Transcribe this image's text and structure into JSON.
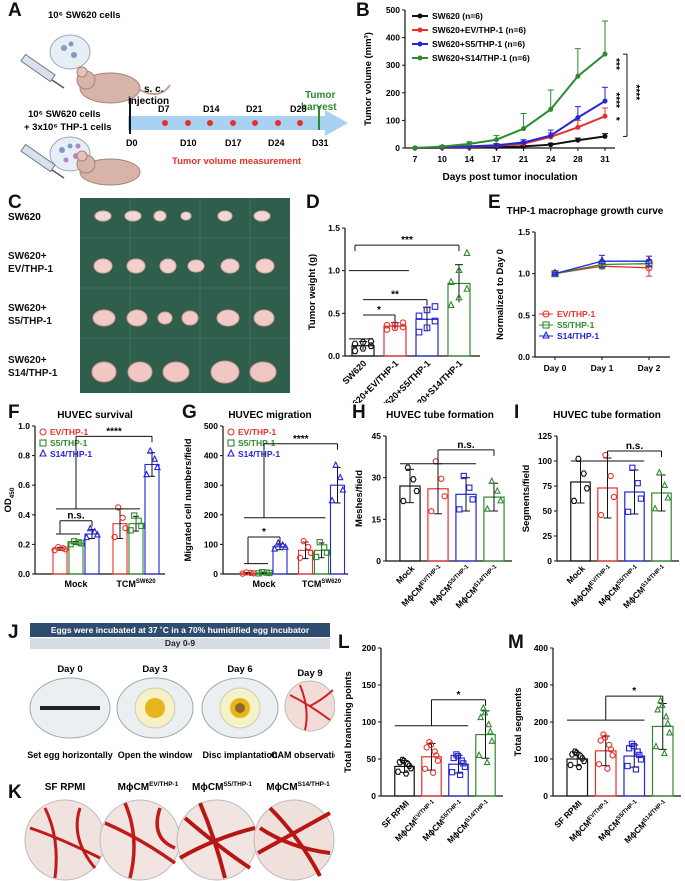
{
  "panel_letters": [
    "A",
    "B",
    "C",
    "D",
    "E",
    "F",
    "G",
    "H",
    "I",
    "J",
    "K",
    "L",
    "M"
  ],
  "colors": {
    "black": "#111111",
    "red": "#e8302a",
    "blue": "#2424d8",
    "green": "#2e8a2e",
    "gray": "#555555",
    "egg_band": "#2e4d6e"
  },
  "panelA": {
    "top_label": "10⁶ SW620 cells",
    "bottom_label_1": "10⁶ SW620 cells",
    "bottom_label_2": "+ 3x10⁶ THP-1 cells",
    "injection_label_1": "s. c.",
    "injection_label_2": "injection",
    "harvest_label_1": "Tumor",
    "harvest_label_2": "harvest",
    "days_top": [
      "D7",
      "D14",
      "D21",
      "D28"
    ],
    "days_bottom": [
      "D0",
      "D10",
      "D17",
      "D24",
      "D31"
    ],
    "measurement_label": "Tumor volume measurement"
  },
  "chart_data": [
    {
      "id": "B",
      "type": "line",
      "xlabel": "Days post tumor inoculation",
      "ylabel": "Tumor volume (mm³)",
      "x": [
        7,
        10,
        14,
        17,
        21,
        24,
        28,
        31
      ],
      "ylim": [
        0,
        500
      ],
      "yticks": [
        0,
        100,
        200,
        300,
        400,
        500
      ],
      "series": [
        {
          "name": "SW620 (n=6)",
          "values": [
            0,
            1,
            2,
            3,
            6,
            12,
            28,
            42
          ],
          "err": [
            0,
            1,
            1,
            2,
            3,
            5,
            8,
            10
          ]
        },
        {
          "name": "SW620+EV/THP-1 (n=6)",
          "values": [
            0,
            2,
            4,
            8,
            16,
            40,
            75,
            115
          ],
          "err": [
            0,
            1,
            2,
            4,
            8,
            15,
            25,
            30
          ]
        },
        {
          "name": "SW620+S5/THP-1 (n=6)",
          "values": [
            0,
            3,
            6,
            10,
            20,
            45,
            110,
            170
          ],
          "err": [
            0,
            2,
            3,
            6,
            10,
            20,
            40,
            50
          ]
        },
        {
          "name": "SW620+S14/THP-1 (n=6)",
          "values": [
            0,
            5,
            15,
            30,
            70,
            140,
            260,
            340
          ],
          "err": [
            0,
            4,
            8,
            15,
            55,
            70,
            100,
            120
          ]
        }
      ],
      "annotations": [
        "***",
        "****",
        "*",
        "****"
      ]
    },
    {
      "id": "D",
      "type": "bar",
      "ylabel": "Tumor weight (g)",
      "categories": [
        "SW620",
        "SW620+EV/THP-1",
        "SW620+S5/THP-1",
        "SW620+S14/THP-1"
      ],
      "values": [
        0.12,
        0.35,
        0.43,
        0.85
      ],
      "err": [
        0.05,
        0.04,
        0.14,
        0.22
      ],
      "points": [
        [
          0.06,
          0.09,
          0.12,
          0.14,
          0.16,
          0.17
        ],
        [
          0.31,
          0.33,
          0.34,
          0.36,
          0.37,
          0.39
        ],
        [
          0.28,
          0.33,
          0.41,
          0.47,
          0.54,
          0.58
        ],
        [
          0.59,
          0.68,
          0.78,
          0.86,
          1.0,
          1.2
        ]
      ],
      "ylim": [
        0,
        1.5
      ],
      "yticks": [
        0.0,
        0.5,
        1.0,
        1.5
      ],
      "annotations": [
        "*",
        "**",
        "***"
      ]
    },
    {
      "id": "E",
      "type": "line",
      "title": "THP-1 macrophage growth curve",
      "ylabel": "Normalized to Day 0",
      "categories": [
        "Day 0",
        "Day 1",
        "Day 2"
      ],
      "series": [
        {
          "name": "EV/THP-1",
          "values": [
            1.0,
            1.09,
            1.07
          ],
          "err": [
            0.01,
            0.03,
            0.1
          ]
        },
        {
          "name": "S5/THP-1",
          "values": [
            1.0,
            1.11,
            1.12
          ],
          "err": [
            0.01,
            0.05,
            0.04
          ]
        },
        {
          "name": "S14/THP-1",
          "values": [
            1.0,
            1.15,
            1.15
          ],
          "err": [
            0.01,
            0.07,
            0.06
          ]
        }
      ],
      "ylim": [
        0,
        1.5
      ],
      "yticks": [
        0.0,
        0.5,
        1.0,
        1.5
      ]
    },
    {
      "id": "F",
      "type": "bar",
      "title": "HUVEC survival",
      "ylabel": "OD",
      "ylabel_sub": "450",
      "groups": [
        "Mock",
        "TCM"
      ],
      "group_sup": "SW620",
      "series_names": [
        "EV/THP-1",
        "S5/THP-1",
        "S14/THP-1"
      ],
      "values": [
        [
          0.17,
          0.21,
          0.27
        ],
        [
          0.34,
          0.34,
          0.74
        ]
      ],
      "err": [
        [
          0.01,
          0.01,
          0.03
        ],
        [
          0.1,
          0.05,
          0.08
        ]
      ],
      "ylim": [
        0,
        1.0
      ],
      "yticks": [
        0.0,
        0.2,
        0.4,
        0.6,
        0.8,
        1.0
      ],
      "annotations": [
        "n.s.",
        "****"
      ]
    },
    {
      "id": "G",
      "type": "bar",
      "title": "HUVEC migration",
      "ylabel": "Migrated cell numbers/field",
      "groups": [
        "Mock",
        "TCM"
      ],
      "group_sup": "SW620",
      "series_names": [
        "EV/THP-1",
        "S5/THP-1",
        "S14/THP-1"
      ],
      "values": [
        [
          3,
          4,
          92
        ],
        [
          80,
          80,
          300
        ]
      ],
      "err": [
        [
          2,
          2,
          10
        ],
        [
          28,
          25,
          60
        ]
      ],
      "ylim": [
        0,
        500
      ],
      "yticks": [
        0,
        100,
        200,
        300,
        400,
        500
      ],
      "annotations": [
        "*",
        "****"
      ]
    },
    {
      "id": "H",
      "type": "bar",
      "title": "HUVEC tube formation",
      "ylabel": "Meshes/field",
      "categories": [
        "Mock",
        "MϕCM",
        "MϕCM",
        "MϕCM"
      ],
      "category_sups": [
        "",
        "EV/THP-1",
        "S5/THP-1",
        "S14/THP-1"
      ],
      "values": [
        27,
        26,
        24,
        23
      ],
      "err": [
        6,
        9,
        6,
        5
      ],
      "ylim": [
        0,
        45
      ],
      "yticks": [
        0,
        15,
        30,
        45
      ],
      "annotations": [
        "n.s."
      ]
    },
    {
      "id": "I",
      "type": "bar",
      "title": "HUVEC tube formation",
      "ylabel": "Segments/field",
      "categories": [
        "Mock",
        "MϕCM",
        "MϕCM",
        "MϕCM"
      ],
      "category_sups": [
        "",
        "EV/THP-1",
        "S5/THP-1",
        "S14/THP-1"
      ],
      "values": [
        79,
        73,
        69,
        68
      ],
      "err": [
        21,
        30,
        22,
        18
      ],
      "ylim": [
        0,
        125
      ],
      "yticks": [
        0,
        25,
        50,
        75,
        100,
        125
      ],
      "annotations": [
        "n.s."
      ]
    },
    {
      "id": "L",
      "type": "bar",
      "ylabel": "Total branching points",
      "categories": [
        "SF RPMI",
        "MϕCM",
        "MϕCM",
        "MϕCM"
      ],
      "category_sups": [
        "",
        "EV/THP-1",
        "S5/THP-1",
        "S14/THP-1"
      ],
      "values": [
        40,
        53,
        43,
        83
      ],
      "err": [
        8,
        18,
        12,
        32
      ],
      "ylim": [
        0,
        200
      ],
      "yticks": [
        0,
        50,
        100,
        150,
        200
      ],
      "annotations": [
        "*"
      ]
    },
    {
      "id": "M",
      "type": "bar",
      "ylabel": "Total segments",
      "categories": [
        "SF RPMI",
        "MϕCM",
        "MϕCM",
        "MϕCM"
      ],
      "category_sups": [
        "",
        "EV/THP-1",
        "S5/THP-1",
        "S14/THP-1"
      ],
      "values": [
        100,
        122,
        108,
        188
      ],
      "err": [
        18,
        40,
        30,
        62
      ],
      "ylim": [
        0,
        400
      ],
      "yticks": [
        0,
        100,
        200,
        300,
        400
      ],
      "annotations": [
        "*"
      ]
    }
  ],
  "panelC": {
    "rows": [
      "SW620",
      "SW620+\nEV/THP-1",
      "SW620+\nS5/THP-1",
      "SW620+\nS14/THP-1"
    ]
  },
  "panelJ": {
    "banner": "Eggs were incubated at 37 ˚C in a 70% humidified egg incubator",
    "range": "Day 0-9",
    "days": [
      "Day 0",
      "Day 3",
      "Day 6",
      "Day 9"
    ],
    "captions": [
      "Set egg horizontally",
      "Open the window",
      "Disc implantation",
      "CAM observation"
    ]
  },
  "panelK": {
    "labels": [
      "SF RPMI",
      "MϕCM",
      "MϕCM",
      "MϕCM"
    ],
    "sups": [
      "",
      "EV/THP-1",
      "S5/THP-1",
      "S14/THP-1"
    ]
  }
}
